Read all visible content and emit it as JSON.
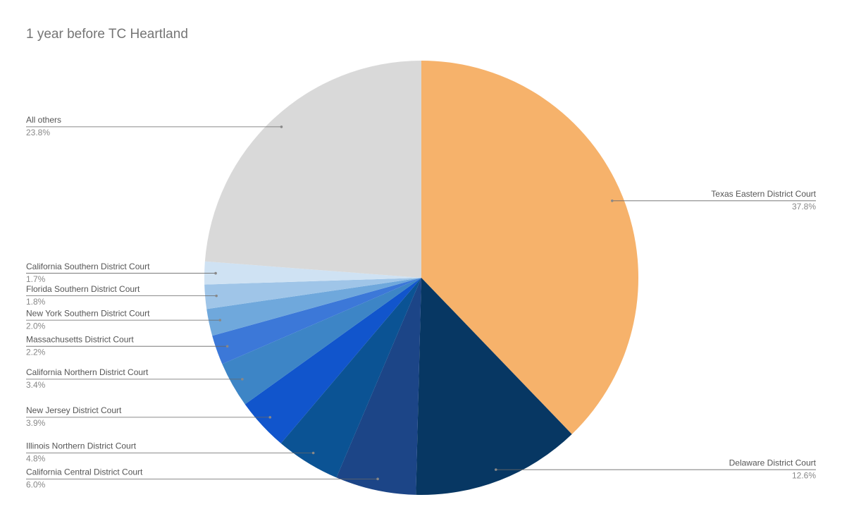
{
  "chart_data": {
    "type": "pie",
    "title": "1 year before TC Heartland",
    "categories": [
      "Texas Eastern District Court",
      "Delaware District Court",
      "California Central District Court",
      "Illinois Northern District Court",
      "New Jersey District Court",
      "California Northern District Court",
      "Massachusetts District Court",
      "New York Southern District Court",
      "Florida Southern District Court",
      "California Southern District Court",
      "All others"
    ],
    "values": [
      37.8,
      12.6,
      6.0,
      4.8,
      3.9,
      3.4,
      2.2,
      2.0,
      1.8,
      1.7,
      23.8
    ],
    "value_labels": [
      "37.8%",
      "12.6%",
      "6.0%",
      "4.8%",
      "3.9%",
      "3.4%",
      "2.2%",
      "2.0%",
      "1.8%",
      "1.7%",
      "23.8%"
    ],
    "colors": [
      "#f6b26b",
      "#073763",
      "#1c4587",
      "#0b5394",
      "#1155cc",
      "#3d85c6",
      "#3c78d8",
      "#6fa8dc",
      "#9fc5e8",
      "#cfe2f3",
      "#d9d9d9"
    ]
  }
}
